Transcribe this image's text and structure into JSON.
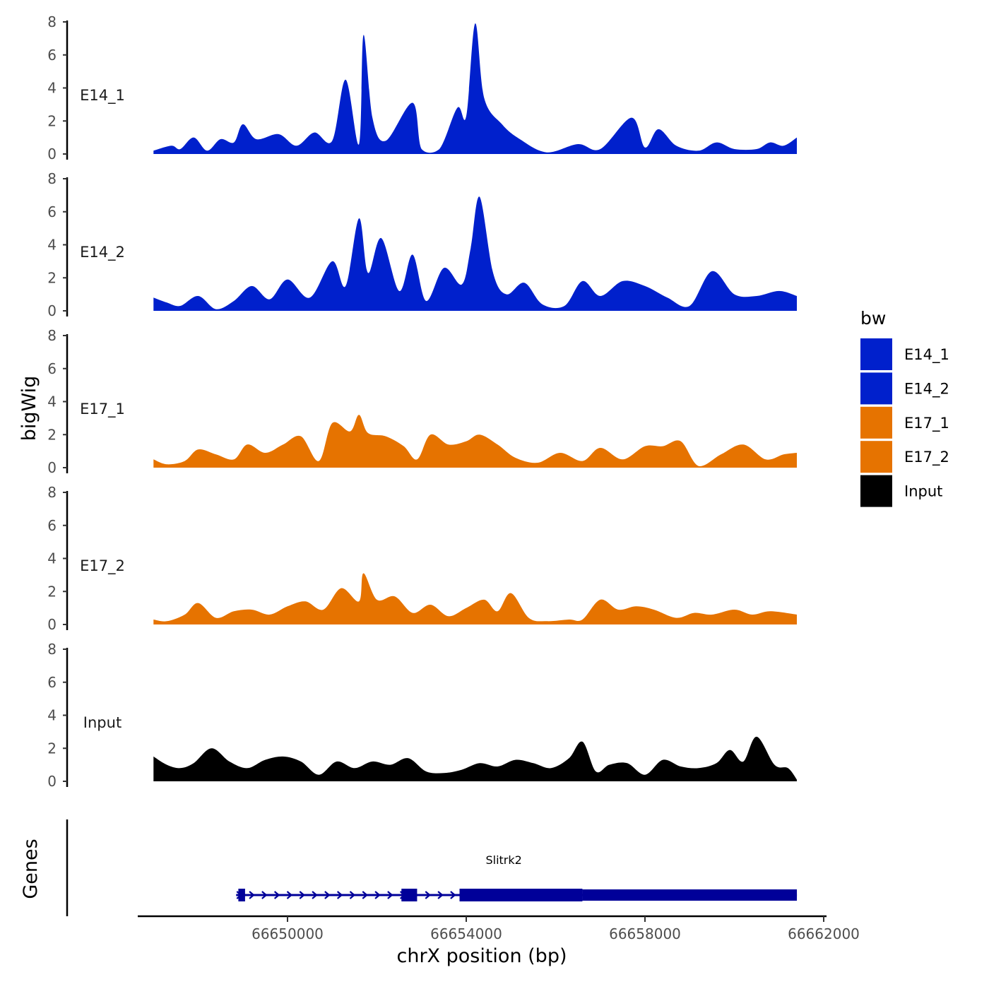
{
  "chart_data": {
    "type": "area",
    "chromosome": "chrX",
    "xlabel": "chrX position (bp)",
    "ylabel": "bigWig",
    "genes_label": "Genes",
    "xlim": [
      66646250,
      66662500
    ],
    "x_ticks": [
      66650000,
      66654000,
      66658000,
      66662000
    ],
    "x_tick_labels": [
      "66650000",
      "66654000",
      "66658000",
      "66662000"
    ],
    "ylim": [
      0,
      8
    ],
    "y_ticks": [
      0,
      2,
      4,
      6,
      8
    ],
    "y_tick_labels": [
      "0",
      "2",
      "4",
      "6",
      "8"
    ],
    "legend": {
      "title": "bw",
      "entries": [
        {
          "label": "E14_1",
          "color": "#0020CC"
        },
        {
          "label": "E14_2",
          "color": "#0020CC"
        },
        {
          "label": "E17_1",
          "color": "#E67300"
        },
        {
          "label": "E17_2",
          "color": "#E67300"
        },
        {
          "label": "Input",
          "color": "#000000"
        }
      ]
    },
    "tracks": [
      {
        "name": "E14_1",
        "color": "#0020CC",
        "x": [
          66647000,
          66647400,
          66647600,
          66647900,
          66648200,
          66648500,
          66648800,
          66649000,
          66649300,
          66649800,
          66650200,
          66650600,
          66651000,
          66651300,
          66651600,
          66651700,
          66651900,
          66652200,
          66652800,
          66653000,
          66653400,
          66653800,
          66654000,
          66654200,
          66654400,
          66654800,
          66655200,
          66655800,
          66656500,
          66657000,
          66657700,
          66658000,
          66658300,
          66658700,
          66659200,
          66659600,
          66660000,
          66660500,
          66660800,
          66661100,
          66661400
        ],
        "values": [
          0.2,
          0.5,
          0.3,
          1.0,
          0.2,
          0.9,
          0.7,
          1.8,
          0.9,
          1.2,
          0.5,
          1.3,
          0.8,
          4.5,
          0.6,
          7.2,
          2.2,
          0.8,
          3.1,
          0.3,
          0.3,
          2.8,
          2.3,
          7.9,
          3.4,
          1.8,
          0.9,
          0.1,
          0.6,
          0.3,
          2.2,
          0.4,
          1.5,
          0.5,
          0.2,
          0.7,
          0.3,
          0.3,
          0.7,
          0.5,
          1.0
        ]
      },
      {
        "name": "E14_2",
        "color": "#0020CC",
        "x": [
          66647000,
          66647300,
          66647600,
          66648000,
          66648400,
          66648800,
          66649200,
          66649600,
          66650000,
          66650500,
          66651000,
          66651300,
          66651600,
          66651800,
          66652100,
          66652500,
          66652800,
          66653100,
          66653500,
          66653900,
          66654100,
          66654300,
          66654600,
          66654900,
          66655300,
          66655700,
          66656200,
          66656600,
          66657000,
          66657500,
          66658000,
          66658500,
          66659000,
          66659500,
          66660000,
          66660500,
          66661000,
          66661400
        ],
        "values": [
          0.8,
          0.5,
          0.3,
          0.9,
          0.1,
          0.6,
          1.5,
          0.7,
          1.9,
          0.8,
          3.0,
          1.5,
          5.6,
          2.3,
          4.4,
          1.2,
          3.4,
          0.6,
          2.6,
          1.6,
          3.8,
          6.9,
          2.3,
          1.0,
          1.7,
          0.4,
          0.3,
          1.8,
          0.9,
          1.8,
          1.5,
          0.8,
          0.3,
          2.4,
          1.0,
          0.9,
          1.2,
          0.9
        ]
      },
      {
        "name": "E17_1",
        "color": "#E67300",
        "x": [
          66647000,
          66647300,
          66647700,
          66648000,
          66648400,
          66648800,
          66649100,
          66649500,
          66649900,
          66650300,
          66650700,
          66651000,
          66651400,
          66651600,
          66651800,
          66652200,
          66652600,
          66652900,
          66653200,
          66653600,
          66654000,
          66654300,
          66654700,
          66655100,
          66655600,
          66656100,
          66656600,
          66657000,
          66657500,
          66658000,
          66658400,
          66658800,
          66659200,
          66659700,
          66660200,
          66660700,
          66661100,
          66661400
        ],
        "values": [
          0.5,
          0.2,
          0.4,
          1.1,
          0.8,
          0.5,
          1.4,
          0.9,
          1.4,
          1.9,
          0.4,
          2.7,
          2.2,
          3.2,
          2.1,
          1.9,
          1.3,
          0.5,
          2.0,
          1.4,
          1.6,
          2.0,
          1.4,
          0.6,
          0.3,
          0.9,
          0.4,
          1.2,
          0.5,
          1.3,
          1.3,
          1.6,
          0.1,
          0.8,
          1.4,
          0.5,
          0.8,
          0.9
        ]
      },
      {
        "name": "E17_2",
        "color": "#E67300",
        "x": [
          66647000,
          66647300,
          66647700,
          66648000,
          66648400,
          66648800,
          66649200,
          66649600,
          66650000,
          66650400,
          66650800,
          66651200,
          66651600,
          66651700,
          66652000,
          66652400,
          66652800,
          66653200,
          66653600,
          66654000,
          66654400,
          66654700,
          66655000,
          66655400,
          66655800,
          66656300,
          66656600,
          66657000,
          66657400,
          66657800,
          66658200,
          66658700,
          66659100,
          66659500,
          66660000,
          66660400,
          66660800,
          66661400
        ],
        "values": [
          0.3,
          0.2,
          0.6,
          1.3,
          0.4,
          0.8,
          0.9,
          0.6,
          1.1,
          1.4,
          0.9,
          2.2,
          1.4,
          3.1,
          1.5,
          1.7,
          0.7,
          1.2,
          0.5,
          1.0,
          1.5,
          0.8,
          1.9,
          0.4,
          0.2,
          0.3,
          0.3,
          1.5,
          0.9,
          1.1,
          0.9,
          0.4,
          0.7,
          0.6,
          0.9,
          0.6,
          0.8,
          0.6
        ]
      },
      {
        "name": "Input",
        "color": "#000000",
        "x": [
          66647000,
          66647300,
          66647600,
          66647900,
          66648300,
          66648700,
          66649100,
          66649500,
          66649900,
          66650300,
          66650700,
          66651100,
          66651500,
          66651900,
          66652300,
          66652700,
          66653100,
          66653500,
          66653900,
          66654300,
          66654700,
          66655100,
          66655500,
          66655900,
          66656300,
          66656600,
          66656900,
          66657200,
          66657600,
          66658000,
          66658400,
          66658800,
          66659200,
          66659600,
          66659900,
          66660200,
          66660500,
          66660900,
          66661200,
          66661400
        ],
        "values": [
          1.5,
          1.0,
          0.8,
          1.1,
          2.0,
          1.2,
          0.8,
          1.3,
          1.5,
          1.2,
          0.4,
          1.2,
          0.8,
          1.2,
          1.0,
          1.4,
          0.6,
          0.5,
          0.7,
          1.1,
          0.9,
          1.3,
          1.1,
          0.8,
          1.4,
          2.4,
          0.6,
          1.0,
          1.1,
          0.4,
          1.3,
          0.9,
          0.8,
          1.1,
          1.9,
          1.2,
          2.7,
          1.0,
          0.8,
          0.1
        ]
      }
    ],
    "genes": [
      {
        "name": "Slitrk2",
        "start": 66648850,
        "end": 66661400,
        "strand": "+",
        "color": "#000099",
        "exons": [
          [
            66648900,
            66649050
          ],
          [
            66652550,
            66652900
          ]
        ],
        "cds": [
          [
            66653850,
            66656600
          ]
        ],
        "utr": [
          [
            66656600,
            66661400
          ]
        ]
      }
    ]
  }
}
